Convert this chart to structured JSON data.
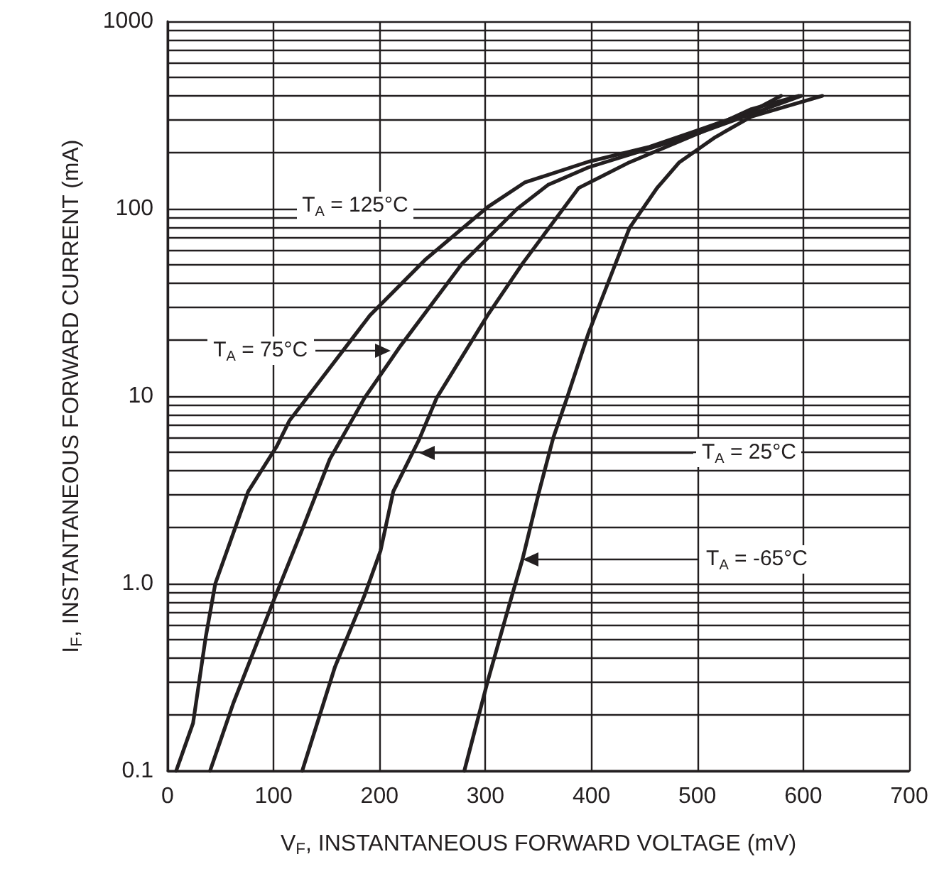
{
  "chart_data": {
    "type": "line",
    "xlabel": "V$_{F}$, INSTANTANEOUS FORWARD VOLTAGE (mV)",
    "ylabel": "I$_{F}$, INSTANTANEOUS FORWARD CURRENT (mA)",
    "xlim": [
      0,
      700
    ],
    "xticks": [
      0,
      100,
      200,
      300,
      400,
      500,
      600,
      700
    ],
    "ylim": [
      0.1,
      1000
    ],
    "log": "y",
    "yticks": [
      {
        "value": 0.1,
        "label": "0.1"
      },
      {
        "value": 0.2,
        "label": null
      },
      {
        "value": 0.3,
        "label": null
      },
      {
        "value": 0.4,
        "label": null
      },
      {
        "value": 0.5,
        "label": null
      },
      {
        "value": 0.6,
        "label": null
      },
      {
        "value": 0.7,
        "label": null
      },
      {
        "value": 0.8,
        "label": null
      },
      {
        "value": 0.9,
        "label": null
      },
      {
        "value": 1,
        "label": "1.0"
      },
      {
        "value": 2,
        "label": null
      },
      {
        "value": 3,
        "label": null
      },
      {
        "value": 4,
        "label": null
      },
      {
        "value": 5,
        "label": null
      },
      {
        "value": 6,
        "label": null
      },
      {
        "value": 7,
        "label": null
      },
      {
        "value": 8,
        "label": null
      },
      {
        "value": 9,
        "label": null
      },
      {
        "value": 10,
        "label": "10"
      },
      {
        "value": 20,
        "label": null
      },
      {
        "value": 30,
        "label": null
      },
      {
        "value": 40,
        "label": null
      },
      {
        "value": 50,
        "label": null
      },
      {
        "value": 60,
        "label": null
      },
      {
        "value": 70,
        "label": null
      },
      {
        "value": 80,
        "label": null
      },
      {
        "value": 90,
        "label": null
      },
      {
        "value": 100,
        "label": "100"
      },
      {
        "value": 200,
        "label": null
      },
      {
        "value": 300,
        "label": null
      },
      {
        "value": 400,
        "label": null
      },
      {
        "value": 500,
        "label": null
      },
      {
        "value": 600,
        "label": null
      },
      {
        "value": 700,
        "label": null
      },
      {
        "value": 800,
        "label": null
      },
      {
        "value": 900,
        "label": null
      },
      {
        "value": 1000,
        "label": "1000"
      }
    ],
    "grid": true,
    "marker": "none",
    "line_style": "solid",
    "series": [
      {
        "color": "#231f20",
        "x": [
          8,
          24,
          36,
          45,
          76,
          103,
          115,
          191,
          244,
          302,
          337,
          397,
          455,
          503,
          551,
          579
        ],
        "values": [
          0.1,
          0.18,
          0.52,
          1.0,
          3.1,
          5.4,
          7.4,
          27,
          54,
          102,
          138,
          178,
          214,
          265,
          330,
          400
        ]
      },
      {
        "color": "#231f20",
        "x": [
          40,
          62,
          100,
          129,
          153,
          186,
          220,
          278,
          330,
          359,
          397,
          455,
          503,
          551,
          596
        ],
        "values": [
          0.1,
          0.23,
          0.81,
          2.07,
          4.6,
          9.8,
          18.6,
          51,
          100,
          134,
          166,
          210,
          255,
          340,
          400
        ]
      },
      {
        "color": "#231f20",
        "x": [
          127,
          158,
          186,
          201,
          213,
          237,
          254,
          302,
          335,
          388,
          436,
          503,
          551,
          598
        ],
        "values": [
          0.1,
          0.36,
          0.87,
          1.5,
          3.1,
          5.8,
          9.8,
          27,
          51,
          129,
          177,
          255,
          320,
          400
        ]
      },
      {
        "color": "#231f20",
        "x": [
          280,
          302,
          321,
          335,
          350,
          364,
          377,
          397,
          421,
          436,
          462,
          483,
          517,
          551,
          618
        ],
        "values": [
          0.1,
          0.3,
          0.72,
          1.35,
          3.0,
          6.0,
          9.8,
          21.5,
          48,
          79,
          129,
          177,
          241,
          310,
          400
        ]
      }
    ],
    "annotations": [
      "T$_{A}$ = 125°C",
      "T$_{A}$ = 75°C",
      "T$_{A}$ = 25°C",
      "T$_{A}$ = -65°C"
    ]
  }
}
